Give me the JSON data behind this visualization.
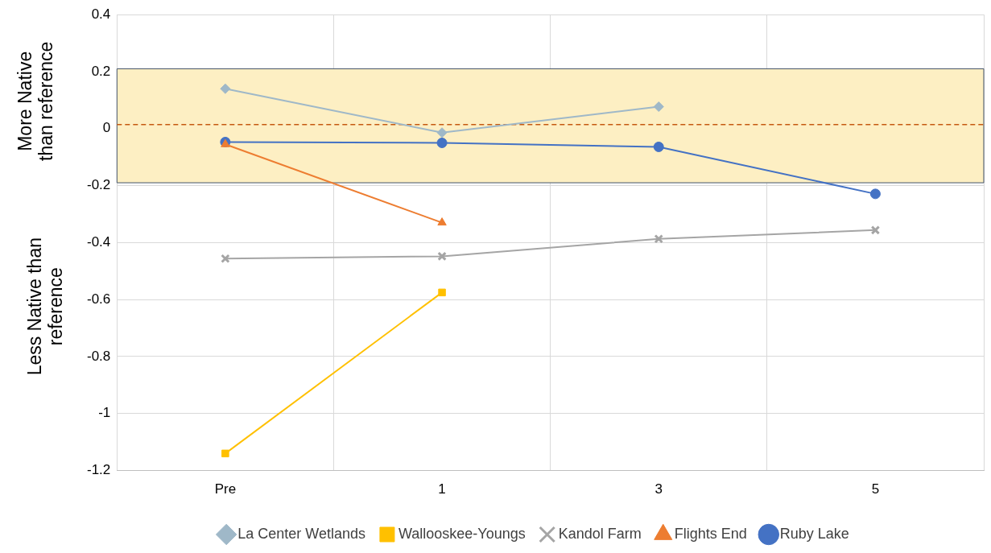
{
  "chart_data": {
    "type": "line",
    "categories": [
      "Pre",
      "1",
      "3",
      "5"
    ],
    "series": [
      {
        "name": "Ruby Lake",
        "color": "#4472c4",
        "marker": "circle",
        "values": [
          -0.047,
          -0.05,
          -0.064,
          -0.229
        ]
      },
      {
        "name": "Flights End",
        "color": "#ed7d31",
        "marker": "triangle",
        "values": [
          -0.055,
          -0.33,
          null,
          null
        ]
      },
      {
        "name": "Kandol Farm",
        "color": "#a5a5a5",
        "marker": "cross",
        "values": [
          -0.456,
          -0.448,
          -0.387,
          -0.356
        ]
      },
      {
        "name": "Wallooskee-Youngs",
        "color": "#ffc000",
        "marker": "square",
        "values": [
          -1.14,
          -0.575,
          null,
          null
        ]
      },
      {
        "name": "La Center Wetlands",
        "color": "#9fb8c8",
        "marker": "diamond",
        "values": [
          0.14,
          -0.014,
          0.077,
          null
        ]
      }
    ],
    "ylim": [
      -1.2,
      0.4
    ],
    "yticks": [
      -1.2,
      -1,
      -0.8,
      -0.6,
      -0.4,
      -0.2,
      0,
      0.2,
      0.4
    ],
    "bands": [
      {
        "axis": "y",
        "from": -0.19,
        "to": 0.21,
        "color": "#fdefc3"
      }
    ],
    "ref_lines": [
      {
        "axis": "y",
        "value": 0.014,
        "color": "#c55a11",
        "line_style": "dashed"
      }
    ],
    "annotations": [
      "More Native than reference",
      "Less Native than reference"
    ],
    "grid": true,
    "legend": "bottom"
  }
}
